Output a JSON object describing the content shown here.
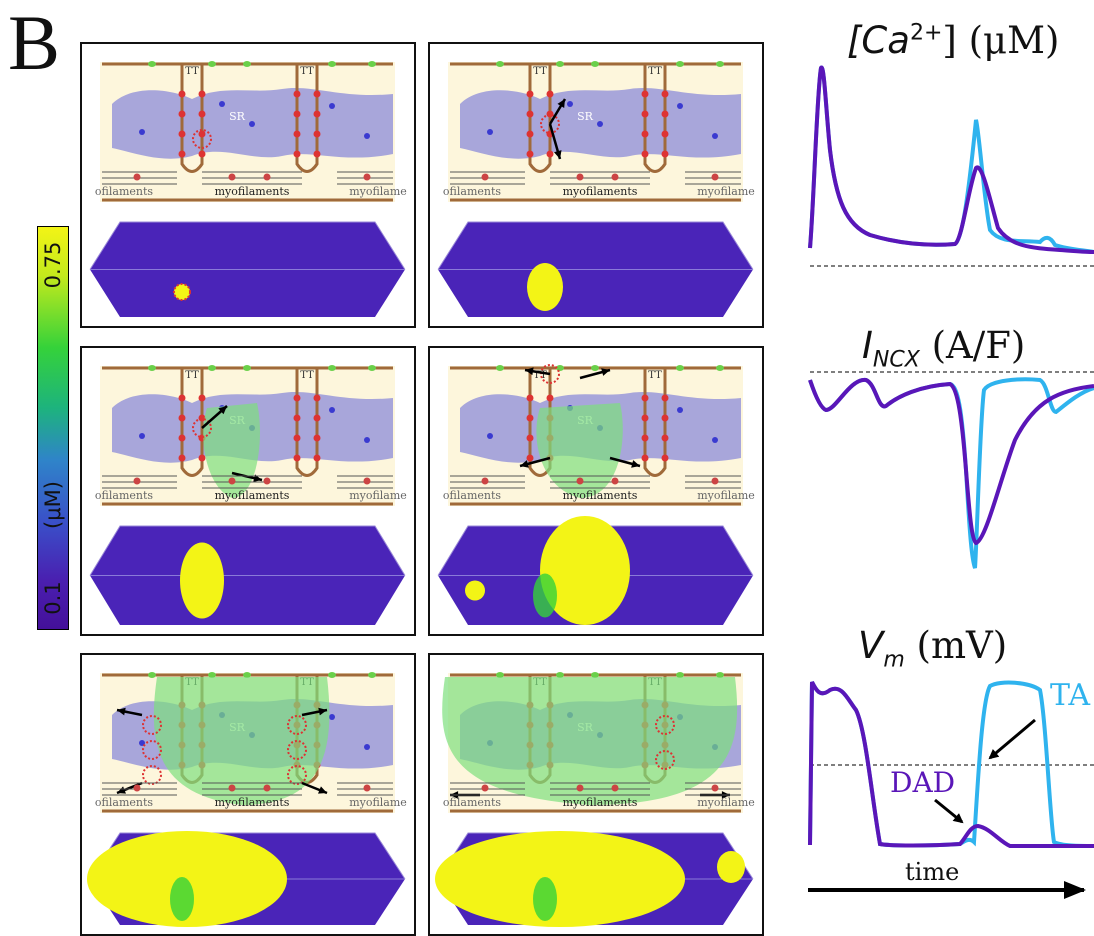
{
  "panel_letter": "B",
  "colorbar": {
    "max_label": "0.75",
    "unit_label": "(μM)",
    "min_label": "0.1",
    "colors": [
      "#f3f416",
      "#35d23a",
      "#2f84c9",
      "#4a1fb0",
      "#44109a"
    ]
  },
  "schematic": {
    "sr_label": "SR",
    "tt_label": "TT",
    "myofilaments_label": "myofilaments",
    "side_label_left": "ofilaments",
    "side_label_right": "myofilame",
    "colors": {
      "sr": "#7b7bd8",
      "membrane": "#a06a3a",
      "cytosol": "#fdf6dc",
      "spread": "#7ee07e",
      "ryr": "#d33",
      "serca": "#3a3ad0",
      "ncx": "#6ad04a",
      "arrow": "#000"
    }
  },
  "plots": {
    "ca": {
      "title_symbol": "[Ca",
      "title_sup": "2+",
      "title_rest": "] (μM)"
    },
    "incx": {
      "title_symbol": "I",
      "title_sub": "NCX",
      "title_rest": " (A/F)"
    },
    "vm": {
      "title_symbol": "V",
      "title_sub": "m",
      "title_rest": " (mV)",
      "ta_label": "TA",
      "dad_label": "DAD"
    },
    "x_axis_label": "time",
    "series_colors": {
      "light": "#2fb3ee",
      "dark": "#5a16b8"
    }
  }
}
